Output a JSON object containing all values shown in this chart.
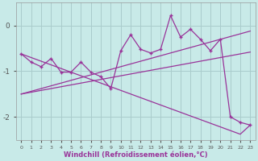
{
  "xlabel": "Windchill (Refroidissement éolien,°C)",
  "bg_color": "#c8eae8",
  "line_color": "#993399",
  "grid_color": "#aacccc",
  "x": [
    0,
    1,
    2,
    3,
    4,
    5,
    6,
    7,
    8,
    9,
    10,
    11,
    12,
    13,
    14,
    15,
    16,
    17,
    18,
    19,
    20,
    21,
    22,
    23
  ],
  "y_main": [
    -0.62,
    -0.8,
    -0.9,
    -0.72,
    -1.02,
    -1.02,
    -0.8,
    -1.02,
    -1.12,
    -1.38,
    -0.55,
    -0.2,
    -0.52,
    -0.6,
    -0.52,
    0.22,
    -0.25,
    -0.08,
    -0.3,
    -0.55,
    -0.3,
    -2.0,
    -2.12,
    -2.18
  ],
  "y_trend_up1": [
    -1.5,
    -1.44,
    -1.38,
    -1.32,
    -1.26,
    -1.2,
    -1.14,
    -1.08,
    -1.02,
    -0.96,
    -0.9,
    -0.84,
    -0.78,
    -0.72,
    -0.66,
    -0.6,
    -0.54,
    -0.48,
    -0.42,
    -0.36,
    -0.3,
    -0.24,
    -0.18,
    -0.12
  ],
  "y_trend_up2": [
    -1.5,
    -1.46,
    -1.42,
    -1.38,
    -1.34,
    -1.3,
    -1.26,
    -1.22,
    -1.18,
    -1.14,
    -1.1,
    -1.06,
    -1.02,
    -0.98,
    -0.94,
    -0.9,
    -0.86,
    -0.82,
    -0.78,
    -0.74,
    -0.7,
    -0.66,
    -0.62,
    -0.58
  ],
  "y_trend_dn": [
    -0.62,
    -0.7,
    -0.78,
    -0.86,
    -0.94,
    -1.02,
    -1.1,
    -1.18,
    -1.26,
    -1.34,
    -1.42,
    -1.5,
    -1.58,
    -1.66,
    -1.74,
    -1.82,
    -1.9,
    -1.98,
    -2.06,
    -2.14,
    -2.22,
    -2.3,
    -2.38,
    -2.18
  ],
  "ylim": [
    -2.5,
    0.5
  ],
  "yticks": [
    0,
    -1,
    -2
  ],
  "xticks": [
    0,
    1,
    2,
    3,
    4,
    5,
    6,
    7,
    8,
    9,
    10,
    11,
    12,
    13,
    14,
    15,
    16,
    17,
    18,
    19,
    20,
    21,
    22,
    23
  ]
}
